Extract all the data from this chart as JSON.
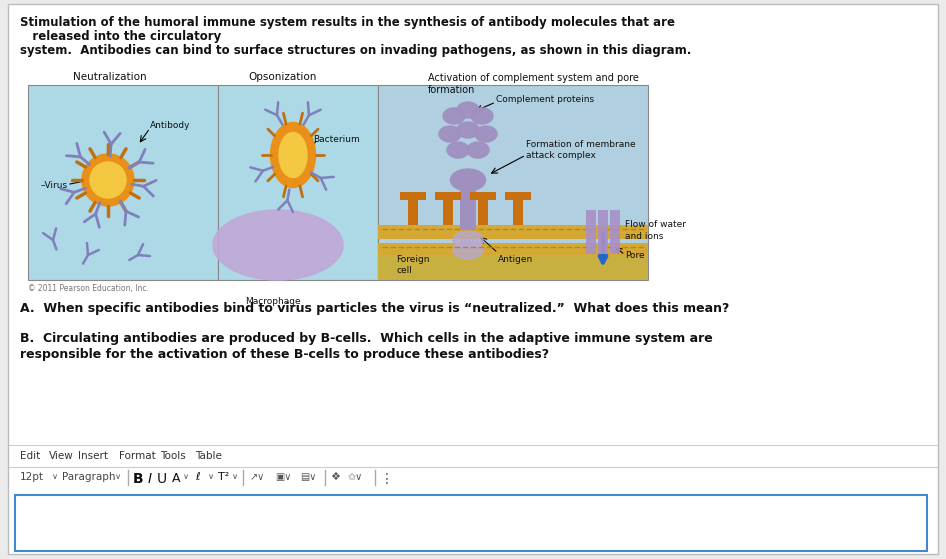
{
  "bg_color": "#ebebeb",
  "panel_bg": "#ffffff",
  "title_lines": [
    "Stimulation of the humoral immune system results in the synthesis of antibody molecules that are",
    "   released into the circulatory",
    "system.  Antibodies can bind to surface structures on invading pathogens, as shown in this diagram."
  ],
  "question_a": "A.  When specific antibodies bind to virus particles the virus is “neutralized.”  What does this mean?",
  "question_b_line1": "B.  Circulating antibodies are produced by B-cells.  Which cells in the adaptive immune system are",
  "question_b_line2": "responsible for the activation of these B-cells to produce these antibodies?",
  "diagram_labels": {
    "neutralization": "Neutralization",
    "opsonization": "Opsonization",
    "activation": "Activation of complement system and pore\nformation",
    "complement": "Complement proteins",
    "membrane": "Formation of membrane\nattack complex",
    "flow": "Flow of water\nand ions",
    "pore": "Pore",
    "antibody": "Antibody",
    "virus": "–Virus",
    "bacterium": "Bacterium",
    "macrophage": "Macrophage",
    "foreign_cell": "Foreign\ncell",
    "antigen": "Antigen",
    "copyright": "© 2011 Pearson Education, Inc."
  },
  "toolbar_items": [
    "Edit",
    "View",
    "Insert",
    "Format",
    "Tools",
    "Table"
  ],
  "left_panel_bg": "#add8e6",
  "mid_panel_bg": "#add8e6",
  "right_panel_bg": "#b0cfe0"
}
